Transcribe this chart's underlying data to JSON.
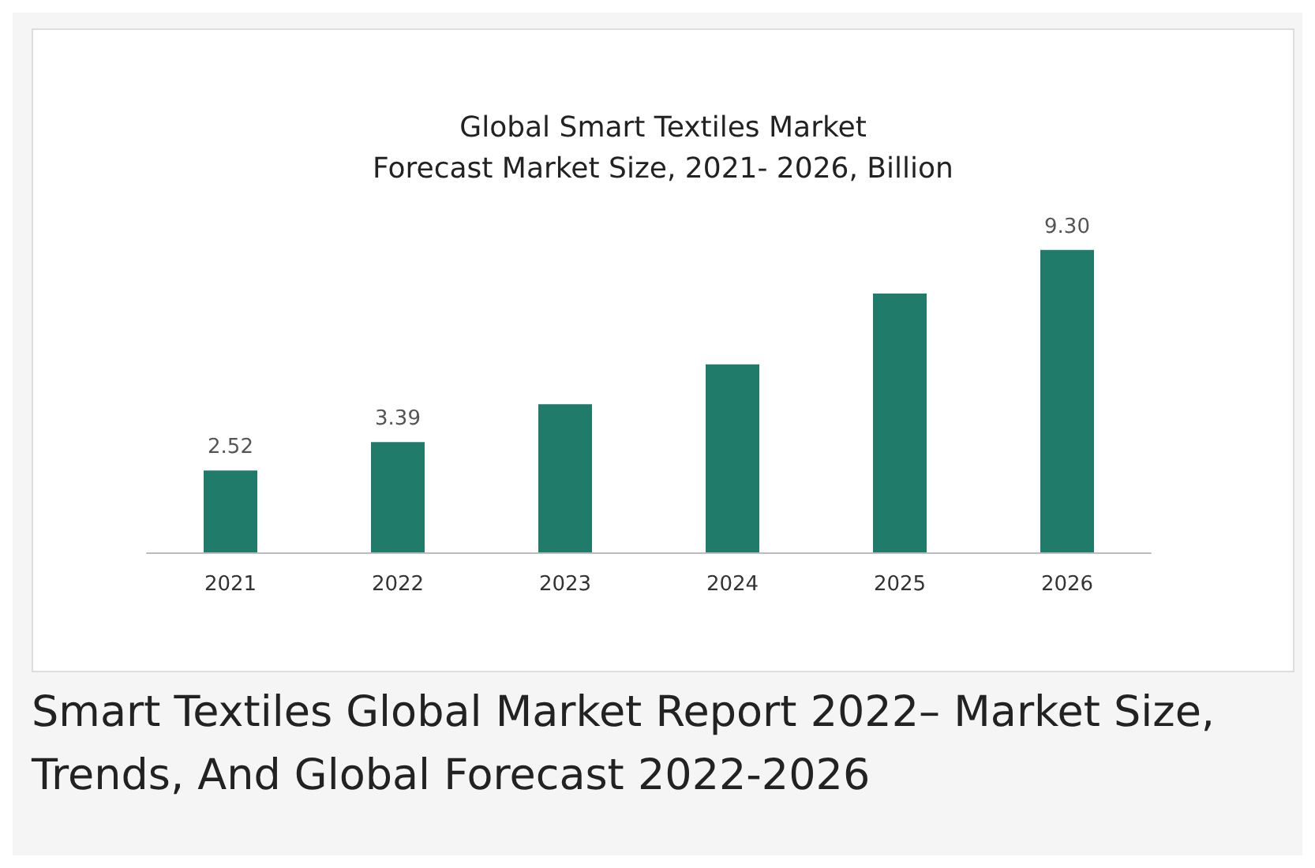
{
  "chart_data": {
    "type": "bar",
    "title": "Global Smart Textiles Market\nForecast Market Size, 2021- 2026, Billion",
    "subtitle": "Smart Textiles Global Market Report 2022– Market Size, Trends, And Global Forecast 2022-2026",
    "categories": [
      "2021",
      "2022",
      "2023",
      "2024",
      "2025",
      "2026"
    ],
    "values": [
      2.52,
      3.39,
      4.56,
      5.78,
      7.96,
      9.3
    ],
    "value_labels": [
      "2.52",
      "3.39",
      null,
      null,
      null,
      "9.30"
    ],
    "color": "#217b6b"
  }
}
